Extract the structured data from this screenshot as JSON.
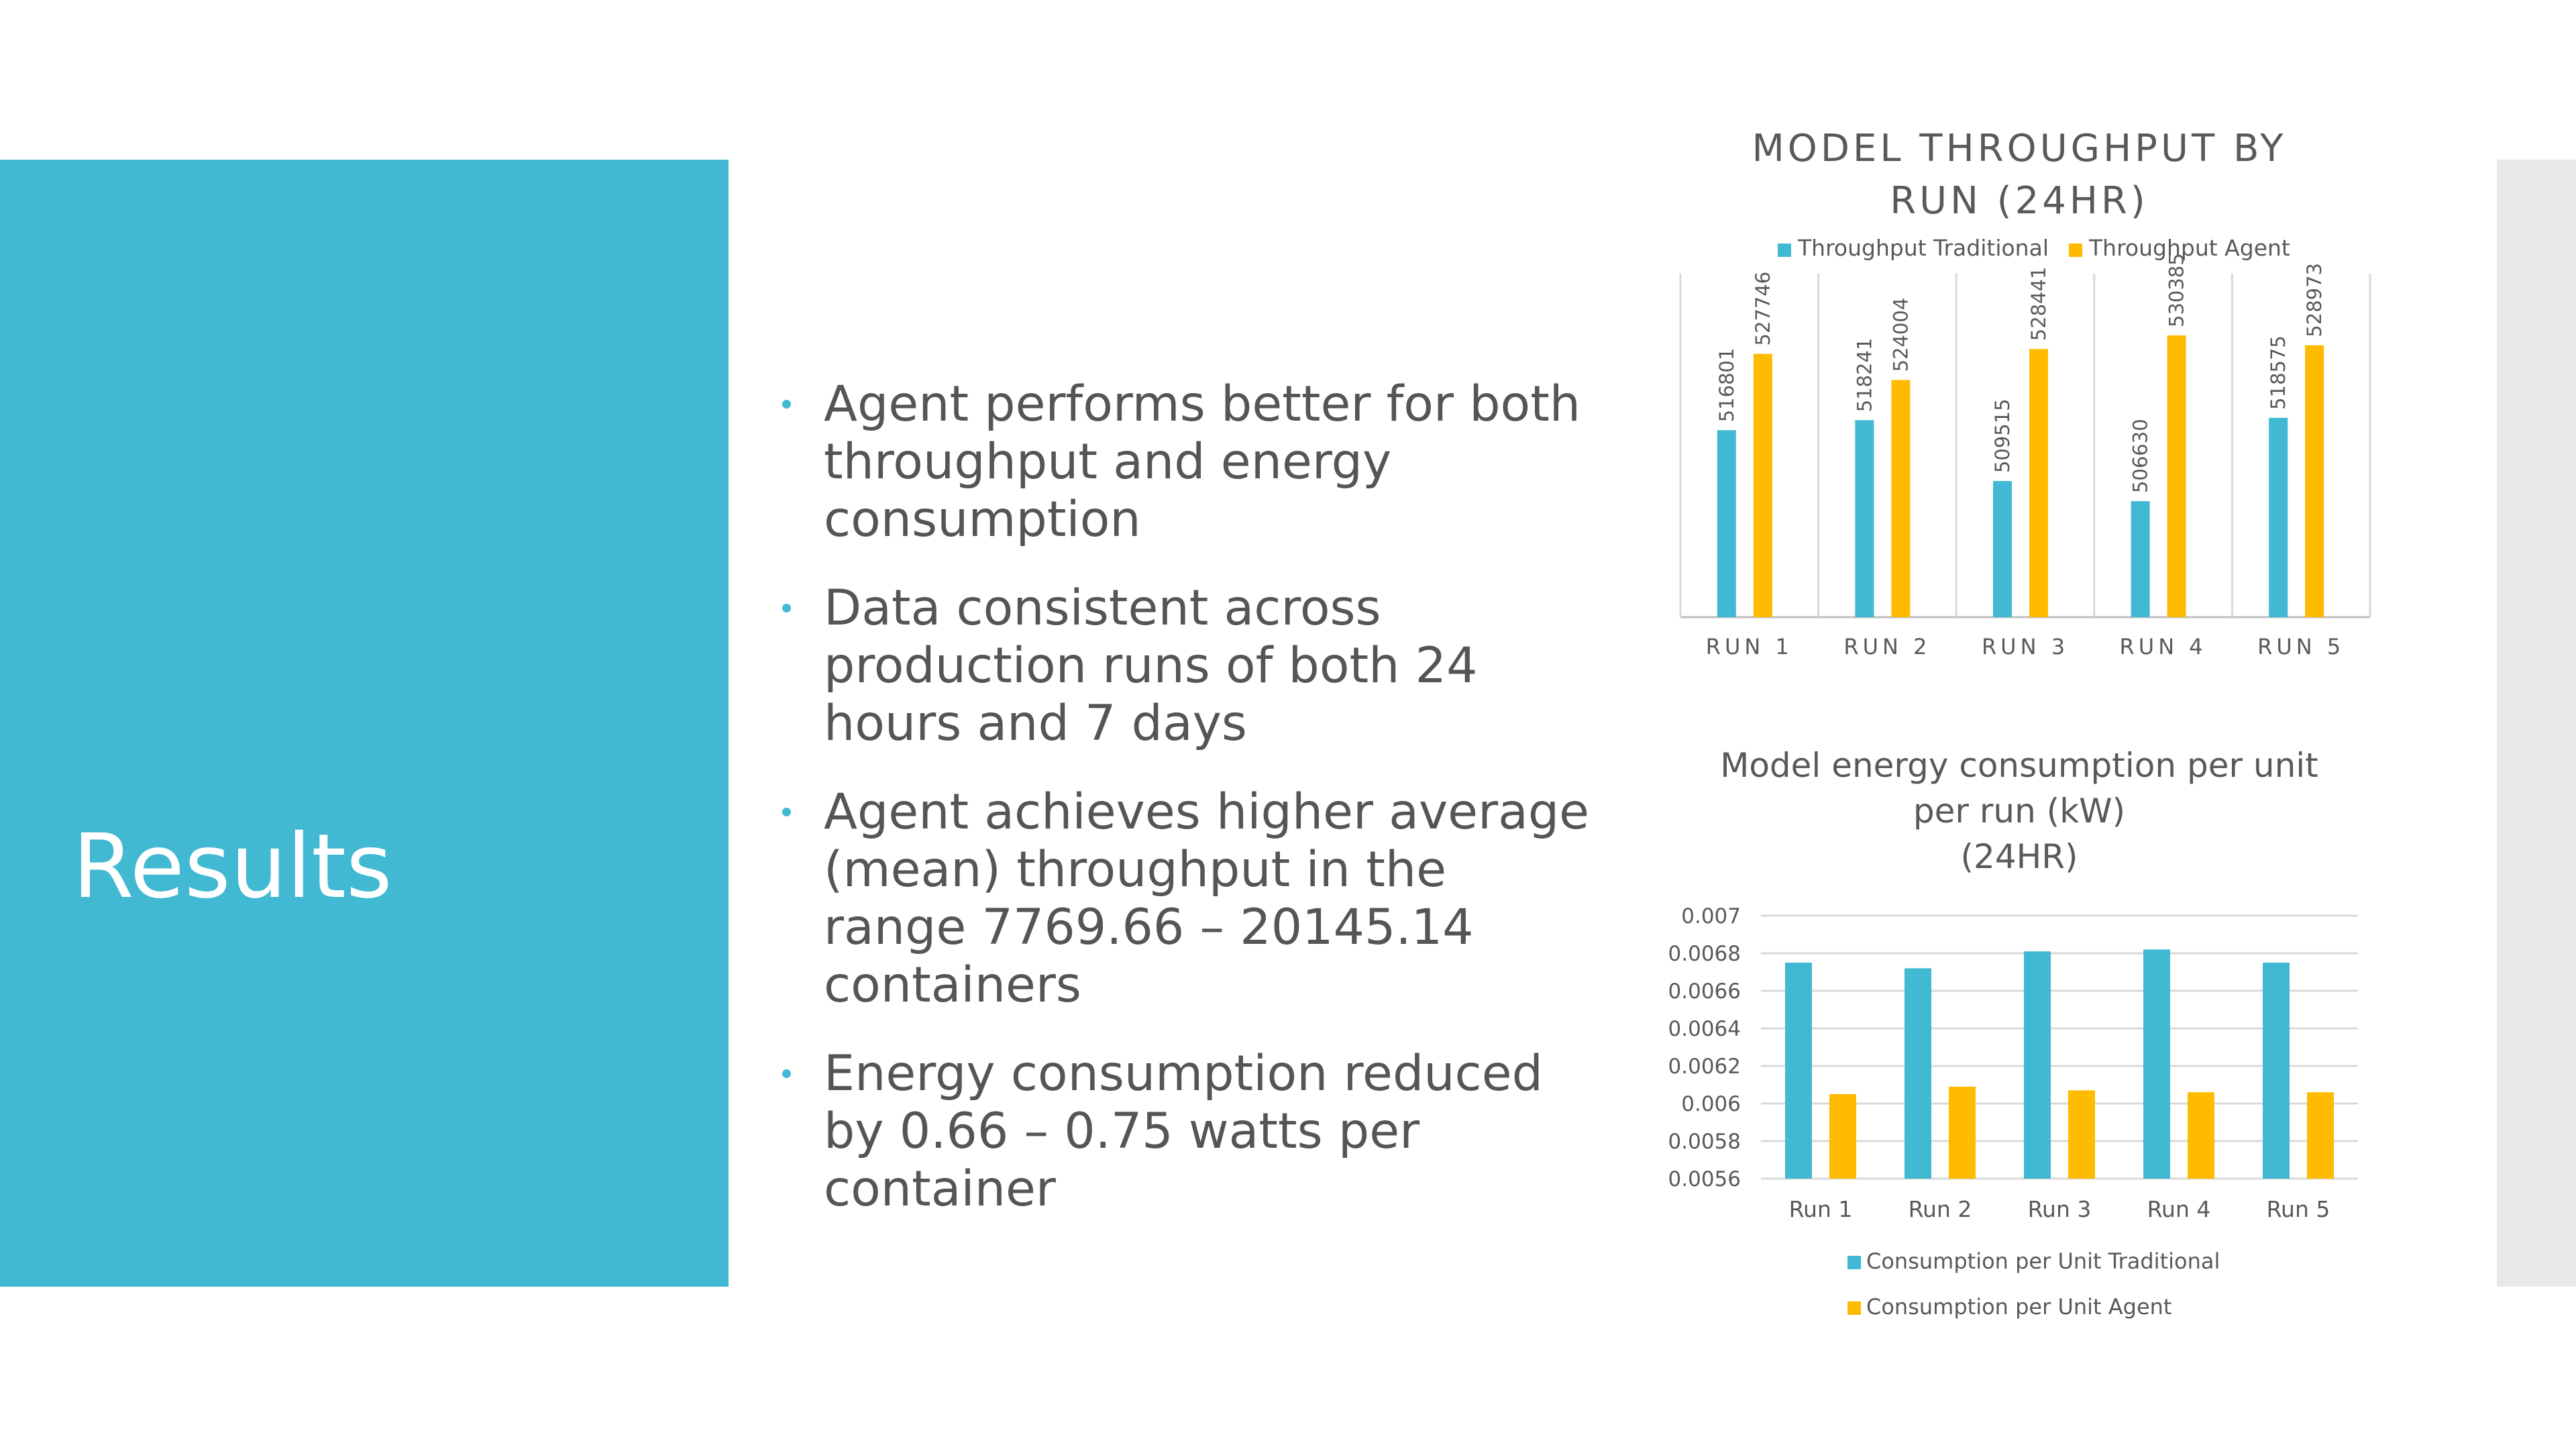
{
  "slide": {
    "title": "Results",
    "bullets": [
      "Agent performs better for both throughput and energy consumption",
      "Data consistent across production runs of both 24 hours and 7 days",
      "Agent achieves higher average (mean) throughput in the range 7769.66 – 20145.14 containers",
      "Energy consumption reduced by 0.66 – 0.75 watts per container"
    ]
  },
  "colors": {
    "panel": "#41b9d3",
    "traditional": "#41b9d3",
    "agent": "#ffbb00",
    "strip": "#e8e8e8"
  },
  "chart_data": [
    {
      "type": "bar",
      "title": "MODEL THROUGHPUT BY RUN (24HR)",
      "categories": [
        "RUN 1",
        "RUN 2",
        "RUN 3",
        "RUN 4",
        "RUN 5"
      ],
      "series": [
        {
          "name": "Throughput Traditional",
          "values": [
            516801,
            518241,
            509515,
            506630,
            518575
          ]
        },
        {
          "name": "Throughput Agent",
          "values": [
            527746,
            524004,
            528441,
            530385,
            528973
          ]
        }
      ],
      "ylim": [
        490000,
        533000
      ],
      "grid": false,
      "legend": "top",
      "data_labels": true
    },
    {
      "type": "bar",
      "title": "Model energy consumption per unit per run (kW) (24HR)",
      "title_lines": [
        "Model energy consumption per unit",
        "per run (kW)",
        "(24HR)"
      ],
      "categories": [
        "Run 1",
        "Run 2",
        "Run 3",
        "Run 4",
        "Run 5"
      ],
      "series": [
        {
          "name": "Consumption per Unit Traditional",
          "values": [
            0.00675,
            0.00672,
            0.00681,
            0.00682,
            0.00675
          ]
        },
        {
          "name": "Consumption per Unit Agent",
          "values": [
            0.00605,
            0.00609,
            0.00607,
            0.00606,
            0.00606
          ]
        }
      ],
      "ylim": [
        0.0056,
        0.007
      ],
      "yticks": [
        "0.007",
        "0.0068",
        "0.0066",
        "0.0064",
        "0.0062",
        "0.006",
        "0.0058",
        "0.0056"
      ],
      "grid": true,
      "legend": "bottom"
    }
  ]
}
